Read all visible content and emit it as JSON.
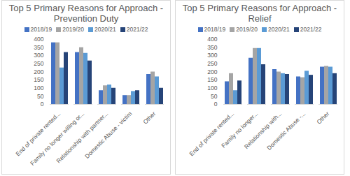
{
  "chart_data": [
    {
      "type": "bar",
      "title": "Top 5 Primary Reasons for Approach - Prevention Duty",
      "categories": [
        "End of private rented...",
        "Family no longer willing or...",
        "Relationship with partner...",
        "Domestic Abuse - victim",
        "Other"
      ],
      "series": [
        {
          "name": "2018/19",
          "color": "#4472c4",
          "values": [
            380,
            320,
            85,
            55,
            185
          ]
        },
        {
          "name": "2019/20",
          "color": "#a5a5a5",
          "values": [
            380,
            350,
            115,
            55,
            200
          ]
        },
        {
          "name": "2020/21",
          "color": "#5b9bd5",
          "values": [
            225,
            315,
            120,
            80,
            170
          ]
        },
        {
          "name": "2021/22",
          "color": "#264478",
          "values": [
            320,
            268,
            100,
            85,
            100
          ]
        }
      ],
      "ylim": [
        0,
        400
      ],
      "yticks": [
        0,
        50,
        100,
        150,
        200,
        250,
        300,
        350,
        400
      ],
      "legend": "top"
    },
    {
      "type": "bar",
      "title": "Top 5 Primary Reasons for Approach - Relief",
      "categories": [
        "End of private rented...",
        "Family no longer...",
        "Relationship with...",
        "Domestic Abuse -...",
        "Other"
      ],
      "series": [
        {
          "name": "2018/19",
          "color": "#4472c4",
          "values": [
            140,
            285,
            215,
            170,
            230
          ]
        },
        {
          "name": "2019/20",
          "color": "#a5a5a5",
          "values": [
            190,
            345,
            200,
            165,
            235
          ]
        },
        {
          "name": "2020/21",
          "color": "#5b9bd5",
          "values": [
            85,
            345,
            190,
            205,
            230
          ]
        },
        {
          "name": "2021/22",
          "color": "#264478",
          "values": [
            145,
            245,
            185,
            180,
            190
          ]
        }
      ],
      "ylim": [
        0,
        400
      ],
      "yticks": [
        0,
        50,
        100,
        150,
        200,
        250,
        300,
        350,
        400
      ],
      "legend": "top"
    }
  ]
}
